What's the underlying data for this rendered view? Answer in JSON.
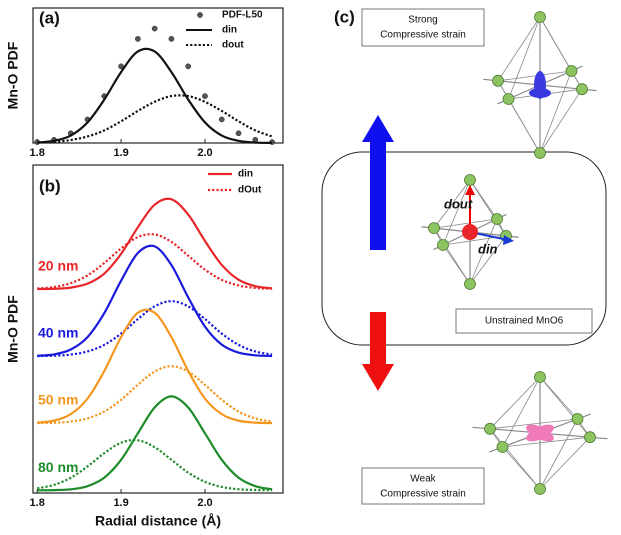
{
  "chart_data": [
    {
      "type": "line",
      "label": "(a)",
      "ylabel": "Mn-O PDF",
      "x": [
        1.8,
        1.82,
        1.84,
        1.86,
        1.88,
        1.9,
        1.92,
        1.94,
        1.96,
        1.98,
        2.0,
        2.02,
        2.04,
        2.06,
        2.08
      ],
      "xlim": [
        1.795,
        2.093
      ],
      "xticks": [
        1.8,
        1.9,
        {
          "value": 2,
          "label": "2.0"
        }
      ],
      "ylim": [
        0,
        1.18
      ],
      "series": [
        {
          "name": "PDF-L50",
          "style": "dots",
          "color": "#555555",
          "values": [
            0.008,
            0.028,
            0.085,
            0.206,
            0.41,
            0.67,
            0.91,
            1.0,
            0.91,
            0.67,
            0.41,
            0.206,
            0.085,
            0.028,
            0.008
          ]
        },
        {
          "name": "din",
          "style": "solid",
          "color": "#111111",
          "values": [
            0.004,
            0.019,
            0.065,
            0.18,
            0.38,
            0.62,
            0.8,
            0.8,
            0.62,
            0.38,
            0.18,
            0.065,
            0.019,
            0.004,
            0.001
          ]
        },
        {
          "name": "dout",
          "style": "dotted",
          "color": "#111111",
          "values": [
            0.004,
            0.01,
            0.026,
            0.057,
            0.11,
            0.19,
            0.28,
            0.36,
            0.41,
            0.41,
            0.36,
            0.28,
            0.19,
            0.11,
            0.057
          ]
        }
      ]
    },
    {
      "type": "line",
      "label": "(b)",
      "ylabel": "Mn-O PDF",
      "xlabel": "Radial distance (Å)",
      "x": [
        1.8,
        1.82,
        1.84,
        1.86,
        1.88,
        1.9,
        1.92,
        1.94,
        1.96,
        1.98,
        2.0,
        2.02,
        2.04,
        2.06,
        2.08
      ],
      "xlim": [
        1.795,
        2.093
      ],
      "xticks": [
        1.8,
        1.9,
        {
          "value": 2,
          "label": "2.0"
        }
      ],
      "ylim": [
        -0.04,
        4.85
      ],
      "legend": [
        {
          "name": "din",
          "style": "solid",
          "color": "#e8262a"
        },
        {
          "name": "dOut",
          "style": "dotted",
          "color": "#e8262a"
        }
      ],
      "groups": [
        {
          "label": "20 nm",
          "color": "#e8262a",
          "series": [
            {
              "style": "solid",
              "values": [
                3.001,
                3.005,
                3.022,
                3.081,
                3.232,
                3.525,
                3.921,
                4.258,
                4.339,
                4.111,
                3.717,
                3.36,
                3.14,
                3.043,
                3.011
              ]
            },
            {
              "style": "dotted",
              "values": [
                3.009,
                3.031,
                3.089,
                3.204,
                3.389,
                3.606,
                3.776,
                3.815,
                3.703,
                3.498,
                3.289,
                3.138,
                3.054,
                3.017,
                3.005
              ]
            }
          ]
        },
        {
          "label": "40 nm",
          "color": "#1a1adc",
          "series": [
            {
              "style": "solid",
              "values": [
                2.006,
                2.026,
                2.099,
                2.284,
                2.642,
                3.125,
                3.538,
                3.637,
                3.358,
                2.876,
                2.441,
                2.172,
                2.053,
                2.013,
                2.002
              ]
            },
            {
              "style": "dotted",
              "values": [
                2.002,
                2.007,
                2.024,
                2.07,
                2.169,
                2.337,
                2.553,
                2.743,
                2.82,
                2.743,
                2.553,
                2.337,
                2.169,
                2.07,
                2.024
              ]
            }
          ]
        },
        {
          "label": "50 nm",
          "color": "#f5961e",
          "series": [
            {
              "style": "solid",
              "values": [
                1.009,
                1.039,
                1.136,
                1.367,
                1.779,
                2.284,
                2.647,
                2.647,
                2.284,
                1.779,
                1.367,
                1.136,
                1.039,
                1.009,
                1.002
              ]
            },
            {
              "style": "dotted",
              "values": [
                1.002,
                1.007,
                1.025,
                1.072,
                1.175,
                1.349,
                1.573,
                1.77,
                1.85,
                1.77,
                1.573,
                1.349,
                1.175,
                1.072,
                1.025
              ]
            }
          ]
        },
        {
          "label": "80 nm",
          "color": "#1e8c2a",
          "series": [
            {
              "style": "solid",
              "values": [
                0,
                0.003,
                0.015,
                0.062,
                0.189,
                0.455,
                0.85,
                1.235,
                1.4,
                1.235,
                0.85,
                0.455,
                0.189,
                0.062,
                0.015
              ]
            },
            {
              "style": "dotted",
              "values": [
                0.029,
                0.081,
                0.187,
                0.356,
                0.554,
                0.71,
                0.746,
                0.643,
                0.455,
                0.264,
                0.126,
                0.05,
                0.016,
                0.005,
                0.001
              ]
            }
          ]
        }
      ]
    }
  ],
  "diagram": {
    "label": "(c)",
    "top_box": [
      "Strong",
      "Compressive strain"
    ],
    "center_box": "Unstrained MnO6",
    "bottom_box": [
      "Weak",
      "Compressive strain"
    ],
    "vectors": [
      "dout",
      "din"
    ]
  }
}
